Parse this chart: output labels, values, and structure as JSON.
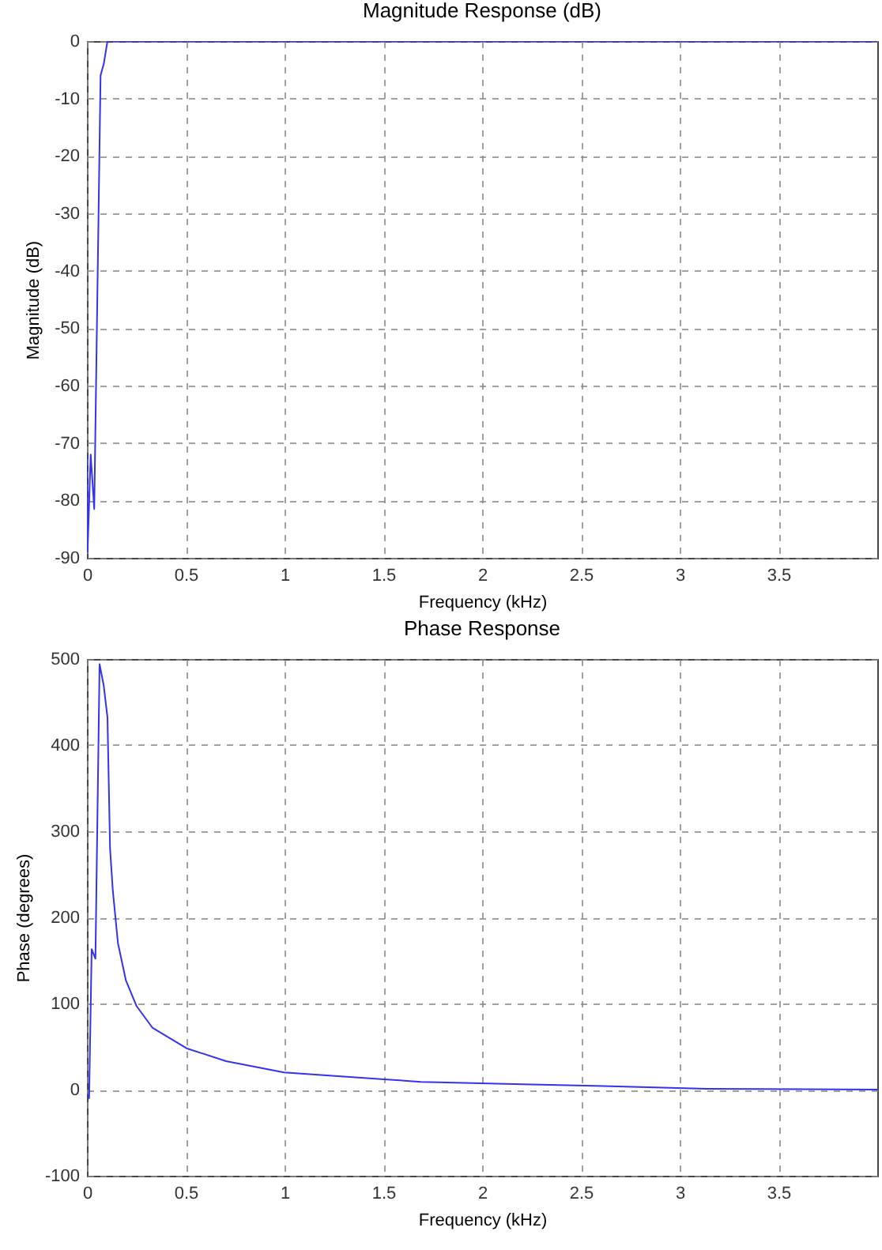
{
  "chart_data": [
    {
      "type": "line",
      "title": "Magnitude Response (dB)",
      "xlabel": "Frequency (kHz)",
      "ylabel": "Magnitude (dB)",
      "x": [
        0,
        0.003,
        0.019,
        0.037,
        0.069,
        0.085,
        0.104,
        0.2,
        0.8,
        3.3,
        4
      ],
      "series": [
        {
          "color": "#3333ee",
          "values": [
            -72,
            -89,
            -72,
            -81.5,
            -6,
            -4,
            0,
            0,
            0,
            0,
            0
          ]
        }
      ],
      "xlim": [
        0,
        4
      ],
      "xticks": [
        0,
        0.5,
        1,
        1.5,
        2,
        2.5,
        3,
        3.5
      ],
      "ylim": [
        -90,
        0
      ],
      "yticks": [
        -90,
        -80,
        -70,
        -60,
        -50,
        -40,
        -30,
        -20,
        -10,
        0
      ],
      "grid": true,
      "marker": "none",
      "line_style": "solid"
    },
    {
      "type": "line",
      "title": "Phase Response",
      "xlabel": "Frequency (kHz)",
      "ylabel": "Phase (degrees)",
      "x": [
        0,
        0.011,
        0.024,
        0.043,
        0.064,
        0.085,
        0.104,
        0.117,
        0.131,
        0.157,
        0.197,
        0.251,
        0.331,
        0.504,
        0.704,
        0.997,
        1.184,
        1.504,
        1.69,
        2.25,
        2.65,
        3.14,
        4
      ],
      "series": [
        {
          "color": "#3333ee",
          "values": [
            -5,
            -10,
            163,
            152,
            494,
            469,
            432,
            280,
            231,
            170,
            127,
            97,
            72,
            48,
            33,
            20,
            17,
            12,
            9,
            6,
            4,
            1,
            0
          ]
        }
      ],
      "xlim": [
        0,
        4
      ],
      "xticks": [
        0,
        0.5,
        1,
        1.5,
        2,
        2.5,
        3,
        3.5
      ],
      "ylim": [
        -100,
        500
      ],
      "yticks": [
        -100,
        0,
        100,
        200,
        300,
        400,
        500
      ],
      "grid": true,
      "marker": "none",
      "line_style": "solid"
    }
  ]
}
